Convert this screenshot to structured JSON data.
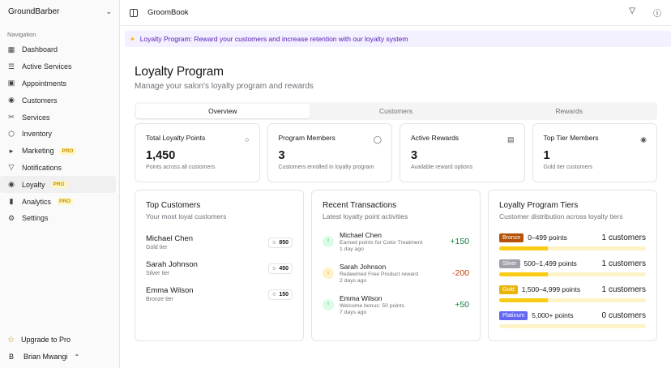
{
  "sidebar": {
    "brand": "GroundBarber",
    "nav_title": "Navigation",
    "items": [
      {
        "label": "Dashboard",
        "icon": "grid-icon",
        "pro": ""
      },
      {
        "label": "Active Services",
        "icon": "list-icon",
        "pro": ""
      },
      {
        "label": "Appointments",
        "icon": "calendar-icon",
        "pro": ""
      },
      {
        "label": "Customers",
        "icon": "users-icon",
        "pro": ""
      },
      {
        "label": "Services",
        "icon": "scissors-icon",
        "pro": ""
      },
      {
        "label": "Inventory",
        "icon": "package-icon",
        "pro": ""
      },
      {
        "label": "Marketing",
        "icon": "megaphone-icon",
        "pro": "PRO"
      },
      {
        "label": "Notifications",
        "icon": "bell-icon",
        "pro": ""
      },
      {
        "label": "Loyalty",
        "icon": "trophy-icon",
        "pro": "PRO"
      },
      {
        "label": "Analytics",
        "icon": "bar-chart-icon",
        "pro": "PRO"
      },
      {
        "label": "Settings",
        "icon": "gear-icon",
        "pro": ""
      }
    ],
    "upgrade": "Upgrade to Pro",
    "user_initial": "B",
    "user_name": "Brian Mwangi"
  },
  "topbar": {
    "title": "GroomBook"
  },
  "banner": {
    "text": "Loyalty Program: Reward your customers and increase retention with our loyalty system"
  },
  "page": {
    "title": "Loyalty Program",
    "subtitle": "Manage your salon's loyalty program and rewards"
  },
  "tabs": [
    "Overview",
    "Customers",
    "Rewards"
  ],
  "stats": [
    {
      "label": "Total Loyalty Points",
      "value": "1,450",
      "desc": "Points across all customers",
      "icon": "tag-icon"
    },
    {
      "label": "Program Members",
      "value": "3",
      "desc": "Customers enrolled in loyalty program",
      "icon": "user-icon"
    },
    {
      "label": "Active Rewards",
      "value": "3",
      "desc": "Available reward options",
      "icon": "gift-icon"
    },
    {
      "label": "Top Tier Members",
      "value": "1",
      "desc": "Gold tier customers",
      "icon": "trophy-icon"
    }
  ],
  "top_customers": {
    "title": "Top Customers",
    "subtitle": "Your most loyal customers",
    "rows": [
      {
        "name": "Michael Chen",
        "tier": "Gold tier",
        "points": "850"
      },
      {
        "name": "Sarah Johnson",
        "tier": "Silver tier",
        "points": "450"
      },
      {
        "name": "Emma Wilson",
        "tier": "Bronze tier",
        "points": "150"
      }
    ]
  },
  "transactions": {
    "title": "Recent Transactions",
    "subtitle": "Latest loyalty point activities",
    "rows": [
      {
        "name": "Michael Chen",
        "desc": "Earned points for Color Treatment",
        "time": "1 day ago",
        "amount": "+150",
        "dir": "up"
      },
      {
        "name": "Sarah Johnson",
        "desc": "Redeemed Free Product reward",
        "time": "2 days ago",
        "amount": "-200",
        "dir": "down"
      },
      {
        "name": "Emma Wilson",
        "desc": "Welcome bonus: 50 points",
        "time": "7 days ago",
        "amount": "+50",
        "dir": "up"
      }
    ]
  },
  "tiers": {
    "title": "Loyalty Program Tiers",
    "subtitle": "Customer distribution across loyalty tiers",
    "rows": [
      {
        "name": "Bronze",
        "range": "0–499 points",
        "count": "1 customers",
        "color": "#b45309",
        "fill": 0.33
      },
      {
        "name": "Silver",
        "range": "500–1,499 points",
        "count": "1 customers",
        "color": "#a1a1aa",
        "fill": 0.33
      },
      {
        "name": "Gold",
        "range": "1,500–4,999 points",
        "count": "1 customers",
        "color": "#eab308",
        "fill": 0.33
      },
      {
        "name": "Platinum",
        "range": "5,000+ points",
        "count": "0 customers",
        "color": "#6366f1",
        "fill": 0
      }
    ]
  }
}
